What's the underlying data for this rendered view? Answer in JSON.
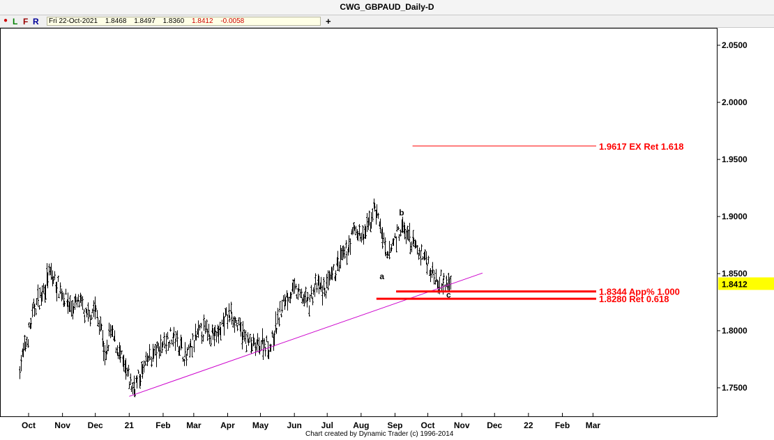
{
  "window": {
    "title": "CWG_GBPAUD_Daily-D"
  },
  "toolbar": {
    "buttons": [
      "L",
      "F",
      "R"
    ],
    "ohlc": {
      "date": "Fri 22-Oct-2021",
      "open": "1.8468",
      "high": "1.8497",
      "low": "1.8360",
      "close": "1.8412",
      "change": "-0.0058"
    },
    "add_label": "+"
  },
  "footer": {
    "credit": "Chart created by Dynamic Trader  (c)  1996-2014"
  },
  "chart_data": {
    "type": "bar",
    "x_labels": [
      "Oct",
      "Nov",
      "Dec",
      "21",
      "Feb",
      "Mar",
      "Apr",
      "May",
      "Jun",
      "Jul",
      "Aug",
      "Sep",
      "Oct",
      "Nov",
      "Dec",
      "22",
      "Feb",
      "Mar"
    ],
    "y_ticks": [
      "2.0500",
      "2.0000",
      "1.9500",
      "1.9000",
      "1.8500",
      "1.8000",
      "1.7500"
    ],
    "ylim": [
      1.725,
      2.065
    ],
    "last_price": "1.8412",
    "colors": {
      "price_bar": "#000000",
      "level": "#ff0000",
      "trendline": "#cc00cc",
      "last_price_bg": "#ffff00"
    },
    "levels": [
      {
        "label": "1.9617 EX Ret 1.618",
        "value": 1.9617,
        "start_date": "2021-09-17"
      },
      {
        "label": "1.8344 App% 1.000",
        "value": 1.8344,
        "start_date": "2021-09-02"
      },
      {
        "label": "1.8280 Ret 0.618",
        "value": 1.828,
        "start_date": "2021-08-15"
      }
    ],
    "trendline": {
      "from": {
        "date": "2021-01-01",
        "value": 1.7425
      },
      "to": {
        "date": "2021-11-20",
        "value": 1.8505
      }
    },
    "wave_labels": [
      {
        "label": "a",
        "date": "2021-08-20",
        "value": 1.8475
      },
      {
        "label": "b",
        "date": "2021-09-07",
        "value": 1.9035
      },
      {
        "label": "c",
        "date": "2021-10-20",
        "value": 1.8315
      }
    ],
    "path": [
      [
        "2020-09-23",
        1.77
      ],
      [
        "2020-09-29",
        1.79
      ],
      [
        "2020-10-06",
        1.82
      ],
      [
        "2020-10-12",
        1.83
      ],
      [
        "2020-10-20",
        1.85
      ],
      [
        "2020-10-27",
        1.84
      ],
      [
        "2020-11-02",
        1.83
      ],
      [
        "2020-11-09",
        1.82
      ],
      [
        "2020-11-16",
        1.825
      ],
      [
        "2020-11-23",
        1.81
      ],
      [
        "2020-11-30",
        1.82
      ],
      [
        "2020-12-07",
        1.8
      ],
      [
        "2020-12-10",
        1.77
      ],
      [
        "2020-12-14",
        1.8
      ],
      [
        "2020-12-21",
        1.785
      ],
      [
        "2020-12-28",
        1.765
      ],
      [
        "2021-01-04",
        1.75
      ],
      [
        "2021-01-11",
        1.76
      ],
      [
        "2021-01-18",
        1.775
      ],
      [
        "2021-01-25",
        1.78
      ],
      [
        "2021-02-01",
        1.79
      ],
      [
        "2021-02-08",
        1.795
      ],
      [
        "2021-02-15",
        1.79
      ],
      [
        "2021-02-22",
        1.775
      ],
      [
        "2021-03-01",
        1.79
      ],
      [
        "2021-03-08",
        1.8
      ],
      [
        "2021-03-15",
        1.8
      ],
      [
        "2021-03-22",
        1.795
      ],
      [
        "2021-03-29",
        1.81
      ],
      [
        "2021-04-05",
        1.815
      ],
      [
        "2021-04-12",
        1.8
      ],
      [
        "2021-04-19",
        1.79
      ],
      [
        "2021-04-26",
        1.785
      ],
      [
        "2021-05-03",
        1.79
      ],
      [
        "2021-05-10",
        1.785
      ],
      [
        "2021-05-17",
        1.81
      ],
      [
        "2021-05-24",
        1.83
      ],
      [
        "2021-05-31",
        1.835
      ],
      [
        "2021-06-07",
        1.83
      ],
      [
        "2021-06-14",
        1.825
      ],
      [
        "2021-06-21",
        1.84
      ],
      [
        "2021-06-28",
        1.835
      ],
      [
        "2021-07-05",
        1.845
      ],
      [
        "2021-07-12",
        1.86
      ],
      [
        "2021-07-19",
        1.87
      ],
      [
        "2021-07-26",
        1.89
      ],
      [
        "2021-08-02",
        1.88
      ],
      [
        "2021-08-09",
        1.895
      ],
      [
        "2021-08-13",
        1.91
      ],
      [
        "2021-08-20",
        1.885
      ],
      [
        "2021-08-24",
        1.86
      ],
      [
        "2021-08-31",
        1.88
      ],
      [
        "2021-09-07",
        1.89
      ],
      [
        "2021-09-14",
        1.88
      ],
      [
        "2021-09-21",
        1.87
      ],
      [
        "2021-09-28",
        1.865
      ],
      [
        "2021-10-05",
        1.85
      ],
      [
        "2021-10-12",
        1.845
      ],
      [
        "2021-10-18",
        1.84
      ],
      [
        "2021-10-22",
        1.841
      ]
    ]
  }
}
